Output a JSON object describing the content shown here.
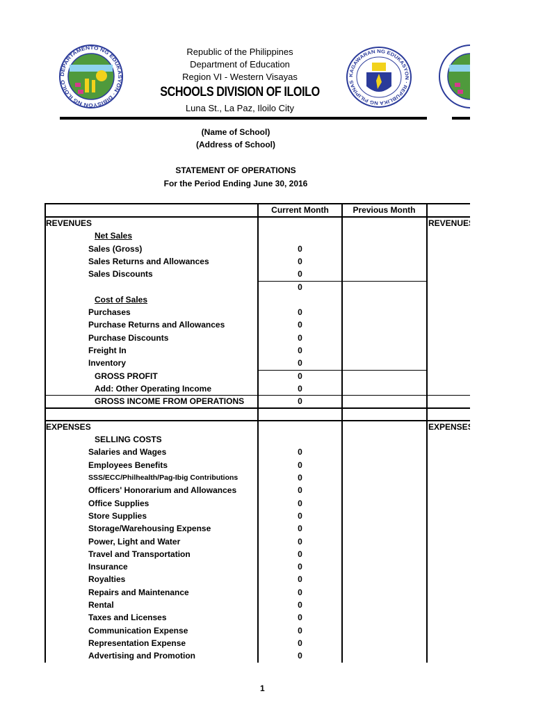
{
  "letterhead": {
    "line1": "Republic of the Philippines",
    "line2": "Department of Education",
    "line3": "Region VI - Western Visayas",
    "division": "SCHOOLS DIVISION OF ILOILO",
    "address": "Luna St., La Paz, Iloilo City",
    "left_logo_text": "DEPARTAMENTO NG EDUKASYON · DIBISYON NG ILOILO",
    "center_logo_text": "KAGAWARAN NG EDUKASYON · REPUBLIKA NG PILIPINAS",
    "colors": {
      "seal_blue": "#2b3b9a",
      "seal_yellow": "#f2d21b",
      "seal_green": "#4f9a3c",
      "seal_pink": "#d23c8c"
    }
  },
  "school": {
    "name": "(Name of School)",
    "address": "(Address of School)"
  },
  "report": {
    "title": "STATEMENT OF OPERATIONS",
    "period": "For the Period Ending June 30, 2016"
  },
  "table": {
    "headers": [
      "",
      "Current Month",
      "Previous Month"
    ],
    "side_labels": {
      "revenues": "REVENUES",
      "expenses": "EXPENSES"
    },
    "rows": [
      {
        "label": "REVENUES",
        "style": "section",
        "value": ""
      },
      {
        "label": "Net Sales",
        "style": "subhead",
        "value": ""
      },
      {
        "label": "Sales (Gross)",
        "style": "item",
        "value": "0"
      },
      {
        "label": "Sales Returns and Allowances",
        "style": "item",
        "value": "0"
      },
      {
        "label": "Sales Discounts",
        "style": "item",
        "value": "0"
      },
      {
        "label": "",
        "style": "item",
        "value": "0"
      },
      {
        "label": "Cost of Sales",
        "style": "subhead",
        "value": ""
      },
      {
        "label": "Purchases",
        "style": "item",
        "value": "0"
      },
      {
        "label": "Purchase Returns and Allowances",
        "style": "item",
        "value": "0"
      },
      {
        "label": "Purchase Discounts",
        "style": "item",
        "value": "0"
      },
      {
        "label": "Freight In",
        "style": "item",
        "value": "0"
      },
      {
        "label": "Inventory",
        "style": "item",
        "value": "0"
      },
      {
        "label": "GROSS PROFIT",
        "style": "total",
        "value": "0"
      },
      {
        "label": "Add: Other Operating Income",
        "style": "total",
        "value": "0"
      },
      {
        "label": "GROSS INCOME FROM OPERATIONS",
        "style": "total",
        "value": "0"
      },
      {
        "label": "",
        "style": "item",
        "value": ""
      },
      {
        "label": "EXPENSES",
        "style": "section",
        "value": ""
      },
      {
        "label": "SELLING COSTS",
        "style": "total",
        "value": ""
      },
      {
        "label": "Salaries and Wages",
        "style": "item",
        "value": "0"
      },
      {
        "label": "Employees Benefits",
        "style": "item",
        "value": "0"
      },
      {
        "label": "SSS/ECC/Philhealth/Pag-Ibig Contributions",
        "style": "item-small",
        "value": "0"
      },
      {
        "label": "Officers' Honorarium and Allowances",
        "style": "item",
        "value": "0"
      },
      {
        "label": "Office Supplies",
        "style": "item",
        "value": "0"
      },
      {
        "label": "Store Supplies",
        "style": "item",
        "value": "0"
      },
      {
        "label": "Storage/Warehousing Expense",
        "style": "item",
        "value": "0"
      },
      {
        "label": "Power, Light and Water",
        "style": "item",
        "value": "0"
      },
      {
        "label": "Travel and Transportation",
        "style": "item",
        "value": "0"
      },
      {
        "label": "Insurance",
        "style": "item",
        "value": "0"
      },
      {
        "label": "Royalties",
        "style": "item",
        "value": "0"
      },
      {
        "label": "Repairs and Maintenance",
        "style": "item",
        "value": "0"
      },
      {
        "label": "Rental",
        "style": "item",
        "value": "0"
      },
      {
        "label": "Taxes and Licenses",
        "style": "item",
        "value": "0"
      },
      {
        "label": "Communication Expense",
        "style": "item",
        "value": "0"
      },
      {
        "label": "Representation Expense",
        "style": "item",
        "value": "0"
      },
      {
        "label": "Advertising and Promotion",
        "style": "item",
        "value": "0"
      }
    ]
  },
  "footer": {
    "page_number": "1"
  }
}
